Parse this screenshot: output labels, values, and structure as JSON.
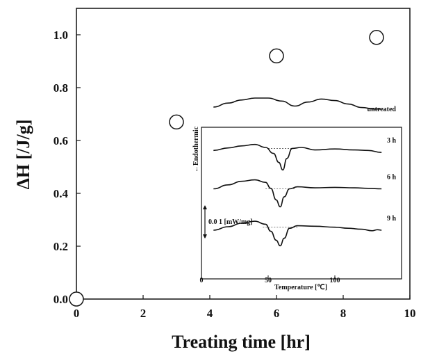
{
  "chart_data": [
    {
      "type": "scatter",
      "xlabel": "Treating time [hr]",
      "ylabel": "ΔH [/J/g]",
      "xlim": [
        0,
        10
      ],
      "ylim": [
        0,
        1.1
      ],
      "xticks": [
        "0",
        "2",
        "4",
        "6",
        "8",
        "10"
      ],
      "yticks": [
        "0.0",
        "0.2",
        "0.4",
        "0.6",
        "0.8",
        "1.0"
      ],
      "grid": false,
      "marker": "open-circle",
      "x": [
        0,
        3,
        6,
        9
      ],
      "y": [
        0.0,
        0.67,
        0.92,
        0.99
      ]
    },
    {
      "type": "line",
      "inset": true,
      "xlabel": "Temperature [℃]",
      "ylabel": "←Endothermic",
      "xlim": [
        0,
        150
      ],
      "xticks": [
        "0",
        "50",
        "100"
      ],
      "scale_bar": "0.0 1 [mW/mg]",
      "series": [
        {
          "name": "untreated",
          "x": [
            9,
            20,
            30,
            40,
            50,
            60,
            70,
            80,
            90,
            100,
            110,
            120,
            130,
            135
          ],
          "y": [
            0.64,
            0.72,
            0.78,
            0.82,
            0.82,
            0.76,
            0.66,
            0.74,
            0.8,
            0.77,
            0.7,
            0.63,
            0.6,
            0.6
          ]
        },
        {
          "name": "3 h",
          "x": [
            9,
            20,
            30,
            40,
            48,
            54,
            58,
            61,
            64,
            68,
            75,
            85,
            100,
            115,
            125,
            135
          ],
          "y": [
            0.44,
            0.49,
            0.53,
            0.56,
            0.5,
            0.38,
            0.2,
            0.05,
            0.28,
            0.48,
            0.5,
            0.45,
            0.47,
            0.45,
            0.44,
            0.4
          ]
        },
        {
          "name": "6 h",
          "x": [
            9,
            20,
            30,
            40,
            48,
            52,
            56,
            59,
            62,
            66,
            72,
            85,
            100,
            115,
            125,
            135
          ],
          "y": [
            0.34,
            0.42,
            0.49,
            0.52,
            0.47,
            0.35,
            0.12,
            -0.02,
            0.18,
            0.34,
            0.38,
            0.36,
            0.37,
            0.36,
            0.35,
            0.34
          ]
        },
        {
          "name": "9 h",
          "x": [
            9,
            20,
            30,
            40,
            48,
            52,
            56,
            59,
            62,
            66,
            72,
            85,
            100,
            110,
            120,
            128,
            132,
            135
          ],
          "y": [
            0.18,
            0.25,
            0.32,
            0.36,
            0.3,
            0.16,
            -0.02,
            -0.13,
            0.02,
            0.22,
            0.27,
            0.26,
            0.24,
            0.22,
            0.2,
            0.17,
            0.19,
            0.18
          ]
        }
      ],
      "baselines": [
        {
          "series": "3 h",
          "x": [
            50,
            70
          ],
          "y": 0.48
        },
        {
          "series": "6 h",
          "x": [
            48,
            70
          ],
          "y": 0.34
        },
        {
          "series": "9 h",
          "x": [
            46,
            72
          ],
          "y": 0.24
        }
      ]
    }
  ]
}
